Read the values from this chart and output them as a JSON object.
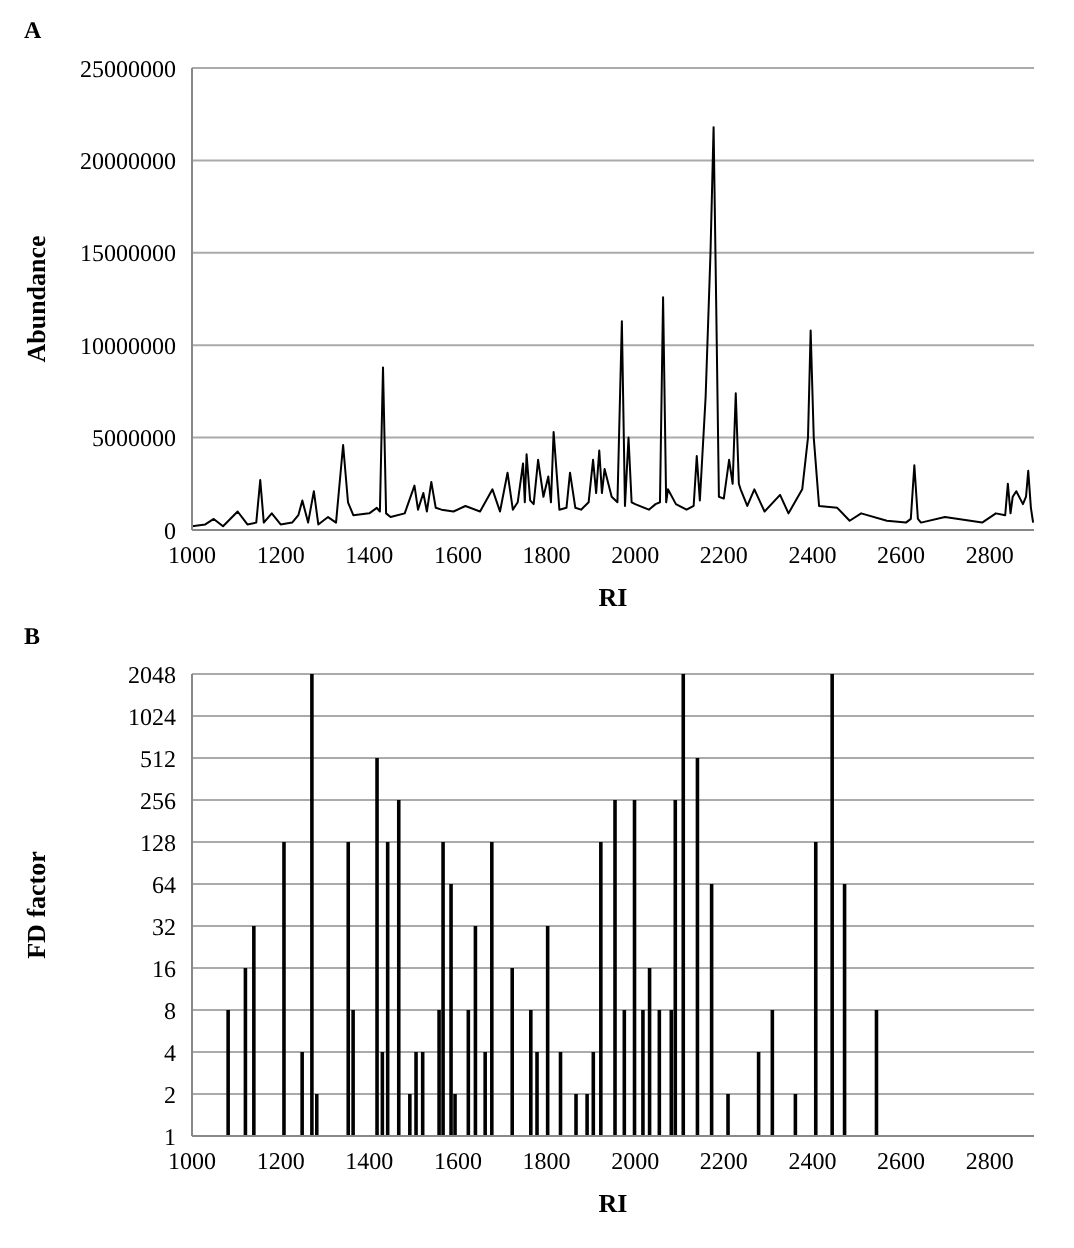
{
  "chart_data": [
    {
      "type": "line",
      "title": "A",
      "xlabel": "RI",
      "ylabel": "Abundance",
      "color": "#000000",
      "grid": "y",
      "xlim": [
        1000,
        2900
      ],
      "xticks": [
        1000,
        1200,
        1400,
        1600,
        1800,
        2000,
        2200,
        2400,
        2600,
        2800
      ],
      "ylim": [
        0,
        25000000
      ],
      "yticks": [
        0,
        5000000,
        10000000,
        15000000,
        20000000,
        25000000
      ],
      "x": [
        1000,
        1030,
        1049,
        1070,
        1103,
        1125,
        1145,
        1154,
        1162,
        1180,
        1200,
        1226,
        1240,
        1249,
        1262,
        1275,
        1285,
        1307,
        1325,
        1341,
        1352,
        1364,
        1400,
        1417,
        1424,
        1431,
        1438,
        1448,
        1480,
        1502,
        1510,
        1522,
        1530,
        1540,
        1550,
        1563,
        1590,
        1617,
        1650,
        1678,
        1695,
        1712,
        1724,
        1735,
        1747,
        1751,
        1755,
        1763,
        1771,
        1781,
        1793,
        1804,
        1810,
        1816,
        1829,
        1845,
        1853,
        1865,
        1878,
        1895,
        1905,
        1912,
        1919,
        1925,
        1931,
        1947,
        1960,
        1970,
        1977,
        1985,
        1992,
        2000,
        2031,
        2046,
        2056,
        2063,
        2070,
        2074,
        2092,
        2116,
        2132,
        2139,
        2146,
        2159,
        2170,
        2177,
        2183,
        2189,
        2200,
        2212,
        2220,
        2227,
        2234,
        2238,
        2253,
        2269,
        2292,
        2327,
        2346,
        2377,
        2390,
        2396,
        2403,
        2415,
        2456,
        2484,
        2510,
        2568,
        2611,
        2622,
        2630,
        2638,
        2645,
        2699,
        2783,
        2814,
        2835,
        2841,
        2847,
        2852,
        2860,
        2875,
        2882,
        2887,
        2893,
        2898
      ],
      "values": [
        200000,
        300000,
        600000,
        200000,
        1000000,
        300000,
        400000,
        2700000,
        400000,
        900000,
        300000,
        400000,
        800000,
        1600000,
        400000,
        2100000,
        300000,
        700000,
        400000,
        4600000,
        1500000,
        800000,
        900000,
        1200000,
        1000000,
        8800000,
        900000,
        700000,
        900000,
        2400000,
        1100000,
        2000000,
        1000000,
        2600000,
        1200000,
        1100000,
        1000000,
        1300000,
        1000000,
        2200000,
        1000000,
        3100000,
        1100000,
        1500000,
        3600000,
        1500000,
        4100000,
        1600000,
        1400000,
        3800000,
        1800000,
        2900000,
        1500000,
        5300000,
        1100000,
        1200000,
        3100000,
        1200000,
        1100000,
        1500000,
        3800000,
        2000000,
        4300000,
        2000000,
        3300000,
        1800000,
        1500000,
        11300000,
        1300000,
        5000000,
        1500000,
        1400000,
        1100000,
        1400000,
        1500000,
        12600000,
        1500000,
        2200000,
        1400000,
        1100000,
        1300000,
        4000000,
        1600000,
        7200000,
        15000000,
        21800000,
        12000000,
        1800000,
        1700000,
        3800000,
        2500000,
        7400000,
        2500000,
        2200000,
        1300000,
        2200000,
        1000000,
        1900000,
        900000,
        2200000,
        5000000,
        10800000,
        5000000,
        1300000,
        1200000,
        500000,
        900000,
        500000,
        400000,
        600000,
        3500000,
        600000,
        400000,
        700000,
        400000,
        900000,
        800000,
        2500000,
        900000,
        1800000,
        2100000,
        1400000,
        1800000,
        3200000,
        1200000,
        400000
      ]
    },
    {
      "type": "bar",
      "title": "B",
      "xlabel": "RI",
      "ylabel": "FD factor",
      "color": "#000000",
      "grid": "y",
      "log": "y",
      "xlim": [
        1000,
        2900
      ],
      "xticks": [
        1000,
        1200,
        1400,
        1600,
        1800,
        2000,
        2200,
        2400,
        2600,
        2800
      ],
      "ylim": [
        1,
        2048
      ],
      "yticks": [
        1,
        2,
        4,
        8,
        16,
        32,
        64,
        128,
        256,
        512,
        1024,
        2048
      ],
      "x": [
        1082,
        1121,
        1140,
        1208,
        1249,
        1271,
        1282,
        1353,
        1364,
        1418,
        1430,
        1442,
        1467,
        1492,
        1506,
        1521,
        1558,
        1567,
        1585,
        1594,
        1624,
        1640,
        1662,
        1677,
        1723,
        1765,
        1779,
        1803,
        1832,
        1867,
        1892,
        1906,
        1923,
        1955,
        1976,
        1999,
        2018,
        2033,
        2055,
        2082,
        2091,
        2109,
        2141,
        2173,
        2210,
        2279,
        2310,
        2362,
        2408,
        2445,
        2473,
        2545
      ],
      "values": [
        8,
        16,
        32,
        128,
        4,
        2048,
        2,
        128,
        8,
        512,
        4,
        128,
        256,
        2,
        4,
        4,
        8,
        128,
        64,
        2,
        8,
        32,
        4,
        128,
        16,
        8,
        4,
        32,
        4,
        2,
        2,
        4,
        128,
        256,
        8,
        256,
        8,
        16,
        8,
        8,
        256,
        2048,
        512,
        64,
        2,
        4,
        8,
        2,
        128,
        2048,
        64,
        8
      ]
    }
  ]
}
